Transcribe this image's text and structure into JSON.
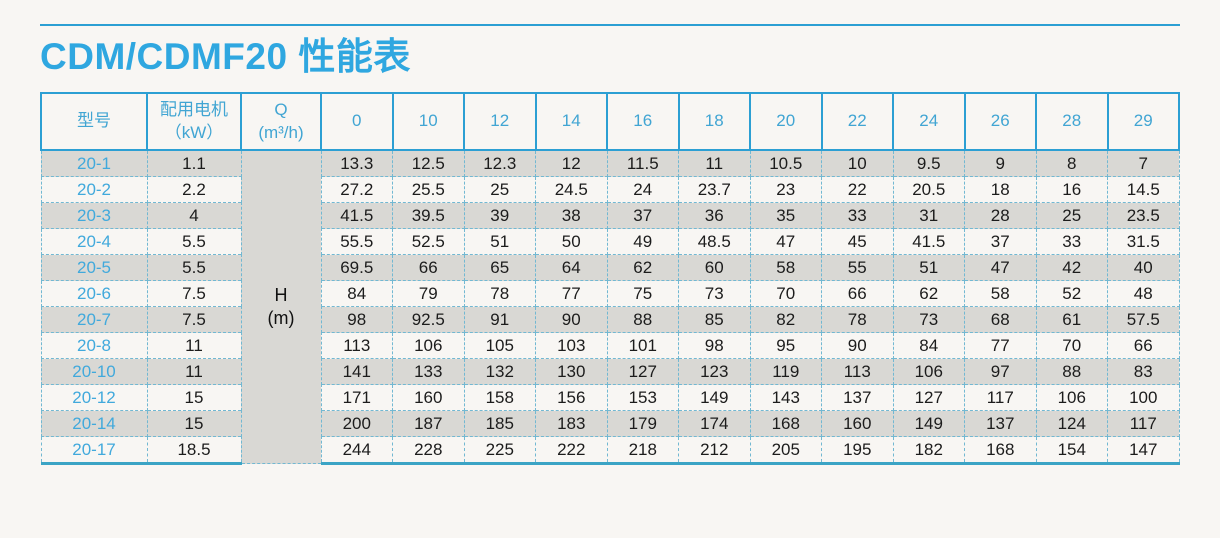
{
  "page": {
    "title": "CDM/CDMF20 性能表"
  },
  "colors": {
    "accent_blue": "#2c9fd3",
    "title_blue": "#2fa7e0",
    "model_text_blue": "#41a9dc",
    "stripe_gray": "#d9d8d4",
    "dashed_border": "#72b8d2",
    "background": "#f8f6f3"
  },
  "table": {
    "col_model_label": "型号",
    "col_motor_label_line1": "配用电机",
    "col_motor_label_line2": "（kW）",
    "col_q_label_line1": "Q",
    "col_q_label_line2": "(m³/h)",
    "flow_headers": [
      "0",
      "10",
      "12",
      "14",
      "16",
      "18",
      "20",
      "22",
      "24",
      "26",
      "28",
      "29"
    ],
    "head_unit_line1": "H",
    "head_unit_line2": "(m)",
    "rows": [
      {
        "model": "20-1",
        "kw": "1.1",
        "values": [
          "13.3",
          "12.5",
          "12.3",
          "12",
          "11.5",
          "11",
          "10.5",
          "10",
          "9.5",
          "9",
          "8",
          "7"
        ]
      },
      {
        "model": "20-2",
        "kw": "2.2",
        "values": [
          "27.2",
          "25.5",
          "25",
          "24.5",
          "24",
          "23.7",
          "23",
          "22",
          "20.5",
          "18",
          "16",
          "14.5"
        ]
      },
      {
        "model": "20-3",
        "kw": "4",
        "values": [
          "41.5",
          "39.5",
          "39",
          "38",
          "37",
          "36",
          "35",
          "33",
          "31",
          "28",
          "25",
          "23.5"
        ]
      },
      {
        "model": "20-4",
        "kw": "5.5",
        "values": [
          "55.5",
          "52.5",
          "51",
          "50",
          "49",
          "48.5",
          "47",
          "45",
          "41.5",
          "37",
          "33",
          "31.5"
        ]
      },
      {
        "model": "20-5",
        "kw": "5.5",
        "values": [
          "69.5",
          "66",
          "65",
          "64",
          "62",
          "60",
          "58",
          "55",
          "51",
          "47",
          "42",
          "40"
        ]
      },
      {
        "model": "20-6",
        "kw": "7.5",
        "values": [
          "84",
          "79",
          "78",
          "77",
          "75",
          "73",
          "70",
          "66",
          "62",
          "58",
          "52",
          "48"
        ]
      },
      {
        "model": "20-7",
        "kw": "7.5",
        "values": [
          "98",
          "92.5",
          "91",
          "90",
          "88",
          "85",
          "82",
          "78",
          "73",
          "68",
          "61",
          "57.5"
        ]
      },
      {
        "model": "20-8",
        "kw": "11",
        "values": [
          "113",
          "106",
          "105",
          "103",
          "101",
          "98",
          "95",
          "90",
          "84",
          "77",
          "70",
          "66"
        ]
      },
      {
        "model": "20-10",
        "kw": "11",
        "values": [
          "141",
          "133",
          "132",
          "130",
          "127",
          "123",
          "119",
          "113",
          "106",
          "97",
          "88",
          "83"
        ]
      },
      {
        "model": "20-12",
        "kw": "15",
        "values": [
          "171",
          "160",
          "158",
          "156",
          "153",
          "149",
          "143",
          "137",
          "127",
          "117",
          "106",
          "100"
        ]
      },
      {
        "model": "20-14",
        "kw": "15",
        "values": [
          "200",
          "187",
          "185",
          "183",
          "179",
          "174",
          "168",
          "160",
          "149",
          "137",
          "124",
          "117"
        ]
      },
      {
        "model": "20-17",
        "kw": "18.5",
        "values": [
          "244",
          "228",
          "225",
          "222",
          "218",
          "212",
          "205",
          "195",
          "182",
          "168",
          "154",
          "147"
        ]
      }
    ]
  }
}
